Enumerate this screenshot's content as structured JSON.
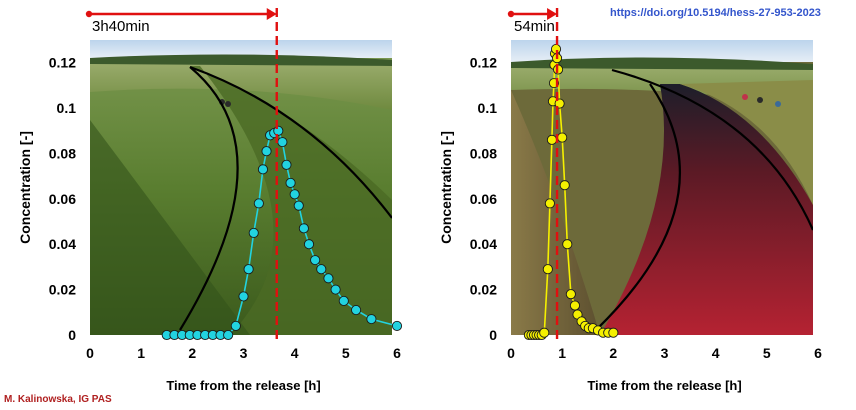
{
  "doi_text": "https://doi.org/10.5194/hess-27-953-2023",
  "credit_text": "M. Kalinowska, IG PAS",
  "colors": {
    "left_series": "#22d3e0",
    "right_series": "#f5f000",
    "marker_line": "#e01010",
    "envelope": "#000000",
    "grass": "#4f7a2e",
    "dye": "#9e1a2a"
  },
  "chart_data": [
    {
      "type": "scatter",
      "title": "",
      "annotation": "3h40min",
      "xlabel": "Time from the release [h]",
      "ylabel": "Concentration [-]",
      "xlim": [
        0,
        6
      ],
      "ylim": [
        0,
        0.13
      ],
      "x_ticks": [
        "0",
        "1",
        "2",
        "3",
        "4",
        "5",
        "6"
      ],
      "y_ticks": [
        "0",
        "0.02",
        "0.04",
        "0.06",
        "0.08",
        "0.1",
        "0.12"
      ],
      "marker_time": 3.65,
      "background_image": "photo-grass-channel",
      "series": [
        {
          "x": [
            1.5,
            1.65,
            1.8,
            1.95,
            2.1,
            2.25,
            2.4,
            2.55,
            2.7,
            2.85,
            3.0,
            3.1,
            3.2,
            3.3,
            3.38,
            3.45,
            3.52,
            3.6,
            3.68,
            3.76,
            3.84,
            3.92,
            4.0,
            4.08,
            4.18,
            4.28,
            4.4,
            4.52,
            4.66,
            4.8,
            4.96,
            5.2,
            5.5,
            6.0
          ],
          "y": [
            0.0,
            0.0,
            0.0,
            0.0,
            0.0,
            0.0,
            0.0,
            0.0,
            0.0,
            0.004,
            0.017,
            0.029,
            0.045,
            0.058,
            0.073,
            0.081,
            0.088,
            0.089,
            0.09,
            0.085,
            0.075,
            0.067,
            0.062,
            0.057,
            0.047,
            0.04,
            0.033,
            0.029,
            0.025,
            0.02,
            0.015,
            0.011,
            0.007,
            0.004
          ]
        }
      ]
    },
    {
      "type": "scatter",
      "title": "",
      "annotation": "54min",
      "xlabel": "Time from the release [h]",
      "ylabel": "Concentration [-]",
      "xlim": [
        0,
        6
      ],
      "ylim": [
        0,
        0.13
      ],
      "x_ticks": [
        "0",
        "1",
        "2",
        "3",
        "4",
        "5",
        "6"
      ],
      "y_ticks": [
        "0",
        "0.02",
        "0.04",
        "0.06",
        "0.08",
        "0.1",
        "0.12"
      ],
      "marker_time": 0.9,
      "background_image": "photo-dye-channel",
      "series": [
        {
          "x": [
            0.35,
            0.4,
            0.45,
            0.5,
            0.55,
            0.6,
            0.65,
            0.72,
            0.76,
            0.8,
            0.82,
            0.84,
            0.85,
            0.86,
            0.88,
            0.9,
            0.92,
            0.95,
            1.0,
            1.05,
            1.1,
            1.17,
            1.25,
            1.3,
            1.38,
            1.45,
            1.52,
            1.6,
            1.7,
            1.8,
            1.9,
            2.0
          ],
          "y": [
            0.0,
            0.0,
            0.0,
            0.0,
            0.0,
            0.0,
            0.001,
            0.029,
            0.058,
            0.086,
            0.103,
            0.111,
            0.119,
            0.124,
            0.126,
            0.122,
            0.117,
            0.102,
            0.087,
            0.066,
            0.04,
            0.018,
            0.013,
            0.009,
            0.006,
            0.004,
            0.003,
            0.003,
            0.002,
            0.001,
            0.001,
            0.001
          ]
        }
      ]
    }
  ]
}
